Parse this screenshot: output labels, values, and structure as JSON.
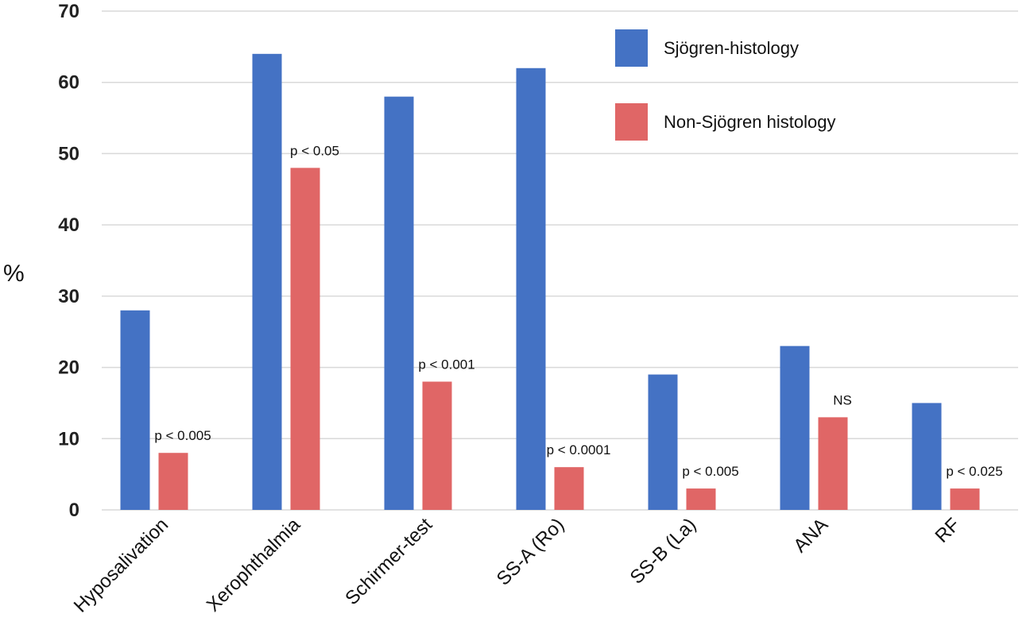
{
  "chart_data": {
    "type": "bar",
    "ylabel": "%",
    "ylim": [
      0,
      70
    ],
    "yticks": [
      0,
      10,
      20,
      30,
      40,
      50,
      60,
      70
    ],
    "grid": true,
    "legend_position": "top-right",
    "categories": [
      "Hyposalivation",
      "Xerophthalmia",
      "Schirmer-test",
      "SS-A (Ro)",
      "SS-B (La)",
      "ANA",
      "RF"
    ],
    "series": [
      {
        "name": "Sjögren-histology",
        "color": "#4472C4",
        "values": [
          28,
          64,
          58,
          62,
          19,
          23,
          15
        ]
      },
      {
        "name": "Non-Sjögren histology",
        "color": "#E06666",
        "values": [
          8,
          48,
          18,
          6,
          3,
          13,
          3
        ]
      }
    ],
    "annotations": [
      "p < 0.005",
      "p < 0.05",
      "p < 0.001",
      "p < 0.0001",
      "p < 0.005",
      "NS",
      "p < 0.025"
    ]
  }
}
